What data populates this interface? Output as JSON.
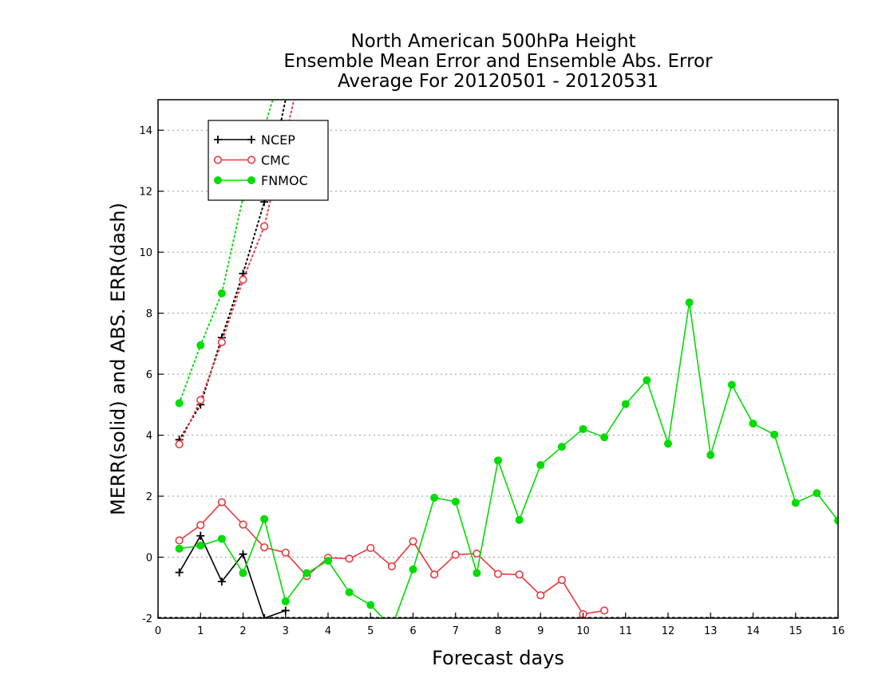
{
  "chart_data": {
    "type": "line",
    "title_lines": [
      "North American 500hPa Height",
      "Ensemble Mean Error and Ensemble Abs. Error",
      "Average For 20120501 - 20120531"
    ],
    "xlabel": "Forecast days",
    "ylabel": "MERR(solid) and ABS. ERR(dash)",
    "xlim": [
      0,
      16
    ],
    "ylim": [
      -2,
      15
    ],
    "xticks": [
      0,
      1,
      2,
      3,
      4,
      5,
      6,
      7,
      8,
      9,
      10,
      11,
      12,
      13,
      14,
      15,
      16
    ],
    "yticks": [
      -2,
      0,
      2,
      4,
      6,
      8,
      10,
      12,
      14
    ],
    "ygrid": true,
    "legend_position": "top-left",
    "series": [
      {
        "name": "NCEP",
        "color": "#000000",
        "marker": "plus",
        "merr": {
          "x": [
            0.5,
            1.0,
            1.5,
            2.0,
            2.5,
            3.0
          ],
          "y": [
            -0.5,
            0.7,
            -0.8,
            0.1,
            -2.0,
            -1.75
          ]
        },
        "abserr": {
          "x": [
            0.5,
            1.0,
            1.5,
            2.0,
            2.5,
            3.0
          ],
          "y": [
            3.85,
            5.0,
            7.2,
            9.3,
            11.65,
            15.0
          ]
        }
      },
      {
        "name": "CMC",
        "color": "#e8383d",
        "marker": "open-circle",
        "merr": {
          "x": [
            0.5,
            1.0,
            1.5,
            2.0,
            2.5,
            3.0,
            3.5,
            4.0,
            4.5,
            5.0,
            5.5,
            6.0,
            6.5,
            7.0,
            7.5,
            8.0,
            8.5,
            9.0,
            9.5,
            10.0,
            10.5
          ],
          "y": [
            0.55,
            1.05,
            1.8,
            1.07,
            0.32,
            0.15,
            -0.62,
            -0.02,
            -0.05,
            0.3,
            -0.3,
            0.52,
            -0.57,
            0.08,
            0.12,
            -0.55,
            -0.57,
            -1.25,
            -0.75,
            -1.87,
            -1.75
          ]
        },
        "abserr": {
          "x": [
            0.5,
            1.0,
            1.5,
            2.0,
            2.5,
            3.2
          ],
          "y": [
            3.7,
            5.15,
            7.05,
            9.1,
            10.85,
            15.0
          ]
        }
      },
      {
        "name": "FNMOC",
        "color": "#00dd00",
        "marker": "filled-circle",
        "merr": {
          "x": [
            0.5,
            1.0,
            1.5,
            2.0,
            2.5,
            3.0,
            3.5,
            4.0,
            4.5,
            5.0,
            5.5,
            6.0,
            6.5,
            7.0,
            7.5,
            8.0,
            8.5,
            9.0,
            9.5,
            10.0,
            10.5,
            11.0,
            11.5,
            12.0,
            12.5,
            13.0,
            13.5,
            14.0,
            14.5,
            15.0,
            15.5,
            16.0
          ],
          "y": [
            0.28,
            0.38,
            0.6,
            -0.52,
            1.25,
            -1.45,
            -0.52,
            -0.12,
            -1.15,
            -1.57,
            -2.3,
            -0.4,
            1.95,
            1.82,
            -0.52,
            3.17,
            1.22,
            3.02,
            3.62,
            4.2,
            3.93,
            5.02,
            5.8,
            3.72,
            8.35,
            3.35,
            5.65,
            4.38,
            4.02,
            1.78,
            2.1,
            1.2
          ]
        },
        "abserr": {
          "x": [
            0.5,
            1.0,
            1.5,
            2.0,
            2.7
          ],
          "y": [
            5.05,
            6.95,
            8.65,
            11.8,
            15.0
          ]
        }
      }
    ]
  }
}
